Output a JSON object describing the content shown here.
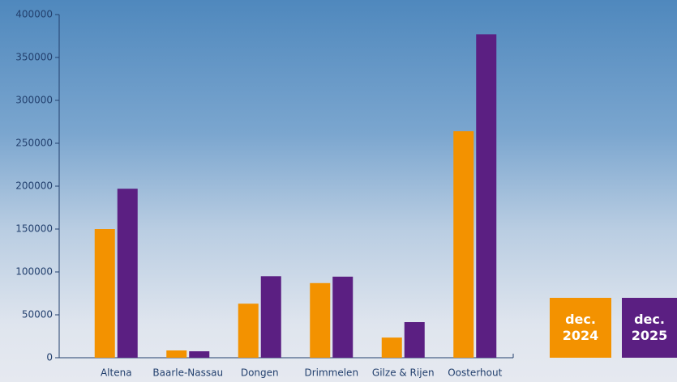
{
  "chart_data": {
    "type": "bar",
    "categories": [
      "Altena",
      "Baarle-Nassau",
      "Dongen",
      "Drimmelen",
      "Gilze & Rijen",
      "Oosterhout"
    ],
    "series": [
      {
        "name": "dec. 2024",
        "color": "#f39200",
        "values": [
          150000,
          8500,
          63000,
          87000,
          23500,
          264000
        ]
      },
      {
        "name": "dec. 2025",
        "color": "#5b1f82",
        "values": [
          197000,
          7500,
          95000,
          94500,
          41500,
          377000
        ]
      }
    ],
    "ylim": [
      0,
      400000
    ],
    "yticks": [
      0,
      50000,
      100000,
      150000,
      200000,
      250000,
      300000,
      350000,
      400000
    ],
    "grid": false
  }
}
